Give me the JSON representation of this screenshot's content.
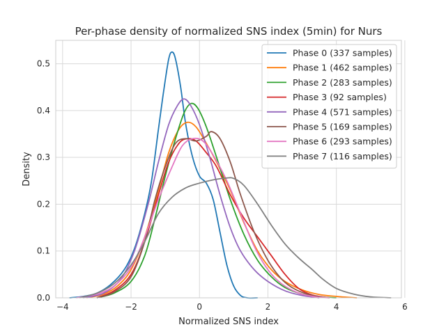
{
  "chart_data": {
    "type": "line",
    "title": "Per-phase density of normalized SNS index (5min) for Nurs",
    "xlabel": "Normalized SNS index",
    "ylabel": "Density",
    "xlim": [
      -4.2,
      5.9
    ],
    "ylim": [
      0,
      0.55
    ],
    "xticks": [
      -4,
      -2,
      0,
      2,
      4,
      6
    ],
    "yticks": [
      0.0,
      0.1,
      0.2,
      0.3,
      0.4,
      0.5
    ],
    "xtick_labels": [
      "−4",
      "−2",
      "0",
      "2",
      "4",
      "6"
    ],
    "ytick_labels": [
      "0.0",
      "0.1",
      "0.2",
      "0.3",
      "0.4",
      "0.5"
    ],
    "grid": true,
    "legend_position": "top-right",
    "series": [
      {
        "name": "Phase 0 (337 samples)",
        "color": "#1f77b4",
        "points": [
          [
            -3.8,
            0.0
          ],
          [
            -3.4,
            0.003
          ],
          [
            -3.0,
            0.01
          ],
          [
            -2.6,
            0.028
          ],
          [
            -2.2,
            0.06
          ],
          [
            -1.9,
            0.105
          ],
          [
            -1.6,
            0.18
          ],
          [
            -1.4,
            0.25
          ],
          [
            -1.2,
            0.36
          ],
          [
            -1.05,
            0.44
          ],
          [
            -0.9,
            0.51
          ],
          [
            -0.8,
            0.525
          ],
          [
            -0.7,
            0.51
          ],
          [
            -0.55,
            0.45
          ],
          [
            -0.4,
            0.37
          ],
          [
            -0.2,
            0.3
          ],
          [
            0.0,
            0.26
          ],
          [
            0.2,
            0.245
          ],
          [
            0.4,
            0.21
          ],
          [
            0.6,
            0.14
          ],
          [
            0.8,
            0.07
          ],
          [
            1.0,
            0.025
          ],
          [
            1.2,
            0.005
          ],
          [
            1.4,
            0.0
          ],
          [
            1.7,
            0.0
          ]
        ]
      },
      {
        "name": "Phase 1 (462 samples)",
        "color": "#ff7f0e",
        "points": [
          [
            -3.3,
            0.0
          ],
          [
            -2.8,
            0.008
          ],
          [
            -2.4,
            0.025
          ],
          [
            -2.0,
            0.06
          ],
          [
            -1.6,
            0.13
          ],
          [
            -1.2,
            0.23
          ],
          [
            -0.9,
            0.31
          ],
          [
            -0.6,
            0.36
          ],
          [
            -0.35,
            0.375
          ],
          [
            -0.1,
            0.365
          ],
          [
            0.2,
            0.33
          ],
          [
            0.5,
            0.29
          ],
          [
            0.9,
            0.23
          ],
          [
            1.3,
            0.16
          ],
          [
            1.7,
            0.1
          ],
          [
            2.1,
            0.06
          ],
          [
            2.5,
            0.035
          ],
          [
            3.0,
            0.017
          ],
          [
            3.5,
            0.007
          ],
          [
            4.0,
            0.003
          ],
          [
            4.6,
            0.0
          ]
        ]
      },
      {
        "name": "Phase 2 (283 samples)",
        "color": "#2ca02c",
        "points": [
          [
            -3.0,
            0.0
          ],
          [
            -2.5,
            0.01
          ],
          [
            -2.0,
            0.035
          ],
          [
            -1.6,
            0.09
          ],
          [
            -1.3,
            0.17
          ],
          [
            -1.0,
            0.26
          ],
          [
            -0.7,
            0.34
          ],
          [
            -0.45,
            0.395
          ],
          [
            -0.25,
            0.415
          ],
          [
            -0.05,
            0.405
          ],
          [
            0.2,
            0.365
          ],
          [
            0.5,
            0.3
          ],
          [
            0.9,
            0.21
          ],
          [
            1.3,
            0.135
          ],
          [
            1.7,
            0.08
          ],
          [
            2.1,
            0.045
          ],
          [
            2.5,
            0.022
          ],
          [
            3.0,
            0.008
          ],
          [
            3.5,
            0.002
          ],
          [
            4.0,
            0.0
          ]
        ]
      },
      {
        "name": "Phase 3 (92 samples)",
        "color": "#d62728",
        "points": [
          [
            -3.0,
            0.0
          ],
          [
            -2.5,
            0.015
          ],
          [
            -2.0,
            0.05
          ],
          [
            -1.6,
            0.12
          ],
          [
            -1.2,
            0.22
          ],
          [
            -0.9,
            0.29
          ],
          [
            -0.6,
            0.33
          ],
          [
            -0.35,
            0.34
          ],
          [
            -0.1,
            0.335
          ],
          [
            0.2,
            0.31
          ],
          [
            0.5,
            0.28
          ],
          [
            0.9,
            0.22
          ],
          [
            1.3,
            0.17
          ],
          [
            1.7,
            0.13
          ],
          [
            2.1,
            0.09
          ],
          [
            2.5,
            0.05
          ],
          [
            2.9,
            0.02
          ],
          [
            3.3,
            0.006
          ],
          [
            3.8,
            0.0
          ]
        ]
      },
      {
        "name": "Phase 4 (571 samples)",
        "color": "#9467bd",
        "points": [
          [
            -3.4,
            0.0
          ],
          [
            -2.8,
            0.01
          ],
          [
            -2.3,
            0.04
          ],
          [
            -1.9,
            0.1
          ],
          [
            -1.5,
            0.2
          ],
          [
            -1.2,
            0.29
          ],
          [
            -0.9,
            0.37
          ],
          [
            -0.65,
            0.41
          ],
          [
            -0.45,
            0.425
          ],
          [
            -0.25,
            0.41
          ],
          [
            0.0,
            0.37
          ],
          [
            0.3,
            0.3
          ],
          [
            0.6,
            0.22
          ],
          [
            0.9,
            0.15
          ],
          [
            1.2,
            0.1
          ],
          [
            1.6,
            0.06
          ],
          [
            2.0,
            0.035
          ],
          [
            2.5,
            0.015
          ],
          [
            3.0,
            0.005
          ],
          [
            3.5,
            0.0
          ]
        ]
      },
      {
        "name": "Phase 5 (169 samples)",
        "color": "#8c564b",
        "points": [
          [
            -3.0,
            0.0
          ],
          [
            -2.5,
            0.012
          ],
          [
            -2.0,
            0.045
          ],
          [
            -1.6,
            0.12
          ],
          [
            -1.3,
            0.21
          ],
          [
            -1.0,
            0.28
          ],
          [
            -0.7,
            0.33
          ],
          [
            -0.4,
            0.34
          ],
          [
            -0.1,
            0.335
          ],
          [
            0.2,
            0.345
          ],
          [
            0.35,
            0.355
          ],
          [
            0.6,
            0.34
          ],
          [
            0.9,
            0.29
          ],
          [
            1.2,
            0.22
          ],
          [
            1.6,
            0.14
          ],
          [
            2.0,
            0.08
          ],
          [
            2.4,
            0.04
          ],
          [
            2.8,
            0.018
          ],
          [
            3.3,
            0.005
          ],
          [
            3.8,
            0.0
          ]
        ]
      },
      {
        "name": "Phase 6 (293 samples)",
        "color": "#e377c2",
        "points": [
          [
            -3.6,
            0.0
          ],
          [
            -3.0,
            0.008
          ],
          [
            -2.5,
            0.025
          ],
          [
            -2.0,
            0.065
          ],
          [
            -1.6,
            0.13
          ],
          [
            -1.2,
            0.21
          ],
          [
            -0.8,
            0.28
          ],
          [
            -0.5,
            0.325
          ],
          [
            -0.2,
            0.34
          ],
          [
            0.1,
            0.335
          ],
          [
            0.4,
            0.305
          ],
          [
            0.8,
            0.25
          ],
          [
            1.2,
            0.18
          ],
          [
            1.6,
            0.11
          ],
          [
            2.0,
            0.06
          ],
          [
            2.4,
            0.03
          ],
          [
            2.9,
            0.01
          ],
          [
            3.4,
            0.002
          ],
          [
            3.8,
            0.0
          ]
        ]
      },
      {
        "name": "Phase 7 (116 samples)",
        "color": "#7f7f7f",
        "points": [
          [
            -3.5,
            0.0
          ],
          [
            -3.0,
            0.01
          ],
          [
            -2.5,
            0.03
          ],
          [
            -2.0,
            0.07
          ],
          [
            -1.6,
            0.12
          ],
          [
            -1.2,
            0.18
          ],
          [
            -0.8,
            0.215
          ],
          [
            -0.4,
            0.235
          ],
          [
            0.0,
            0.245
          ],
          [
            0.4,
            0.252
          ],
          [
            0.8,
            0.256
          ],
          [
            1.0,
            0.255
          ],
          [
            1.3,
            0.24
          ],
          [
            1.7,
            0.2
          ],
          [
            2.1,
            0.155
          ],
          [
            2.5,
            0.115
          ],
          [
            2.9,
            0.085
          ],
          [
            3.3,
            0.06
          ],
          [
            3.6,
            0.04
          ],
          [
            4.0,
            0.02
          ],
          [
            4.5,
            0.008
          ],
          [
            5.0,
            0.002
          ],
          [
            5.6,
            0.0
          ]
        ]
      }
    ]
  }
}
